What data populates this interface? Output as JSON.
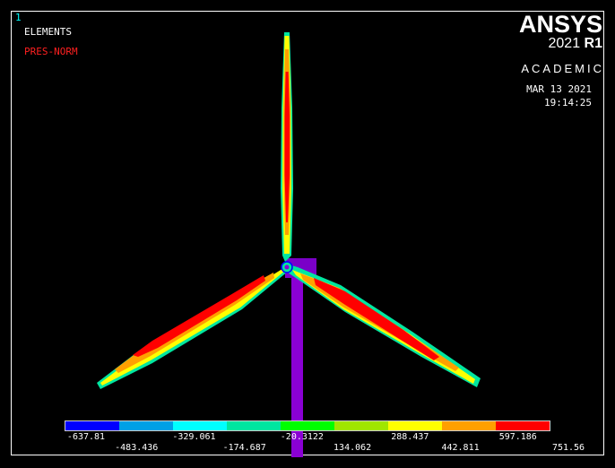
{
  "window": {
    "number": "1",
    "plot_type": "ELEMENTS",
    "result_item": "PRES-NORM"
  },
  "branding": {
    "brand": "ANSYS",
    "version_year": "2021",
    "version_rel": "R1",
    "edition": "ACADEMIC"
  },
  "timestamp": {
    "date": "MAR 13 2021",
    "time": "19:14:25"
  },
  "legend": {
    "colors": [
      "#0000ff",
      "#00a0e6",
      "#00ffff",
      "#00e6a0",
      "#00ff00",
      "#a0e600",
      "#ffff00",
      "#ffa000",
      "#ff0000"
    ],
    "top_labels": [
      "-637.81",
      "-329.061",
      "-20.3122",
      "288.437",
      "597.186"
    ],
    "bottom_labels": [
      "-483.436",
      "-174.687",
      "134.062",
      "442.811",
      "751.56"
    ]
  },
  "model": {
    "tower_color": "#8a00d4",
    "outline_color": "#00e6a0"
  }
}
